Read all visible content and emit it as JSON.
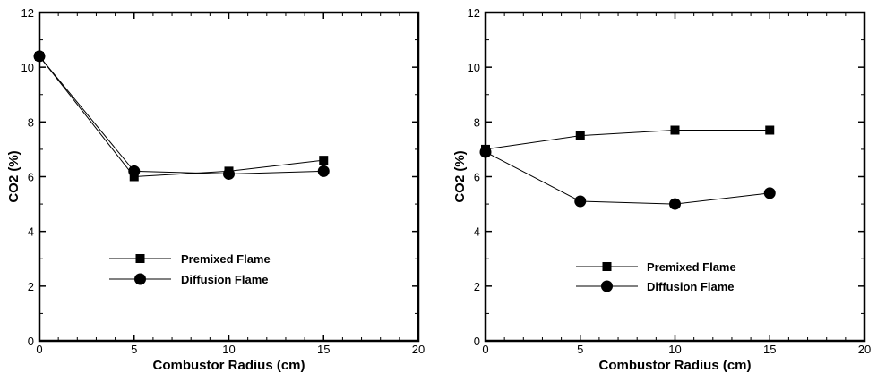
{
  "chart_data": [
    {
      "type": "line",
      "x": [
        0,
        5,
        10,
        15
      ],
      "series": [
        {
          "name": "Premixed Flame",
          "marker": "square",
          "values": [
            10.4,
            6.0,
            6.2,
            6.6
          ]
        },
        {
          "name": "Diffusion Flame",
          "marker": "circle",
          "values": [
            10.4,
            6.2,
            6.1,
            6.2
          ]
        }
      ],
      "xlabel": "Combustor Radius (cm)",
      "ylabel": "CO2 (%)",
      "xlim": [
        0,
        20
      ],
      "ylim": [
        0,
        12
      ],
      "xticks": [
        "0",
        "5",
        "10",
        "15",
        "20"
      ],
      "yticks": [
        "0",
        "2",
        "4",
        "6",
        "8",
        "10",
        "12"
      ],
      "grid": false,
      "legend_position": "lower-middle"
    },
    {
      "type": "line",
      "x": [
        0,
        5,
        10,
        15
      ],
      "series": [
        {
          "name": "Premixed Flame",
          "marker": "square",
          "values": [
            7.0,
            7.5,
            7.7,
            7.7
          ]
        },
        {
          "name": "Diffusion Flame",
          "marker": "circle",
          "values": [
            6.9,
            5.1,
            5.0,
            5.4
          ]
        }
      ],
      "xlabel": "Combustor Radius (cm)",
      "ylabel": "CO2 (%)",
      "xlim": [
        0,
        20
      ],
      "ylim": [
        0,
        12
      ],
      "xticks": [
        "0",
        "5",
        "10",
        "15",
        "20"
      ],
      "yticks": [
        "0",
        "2",
        "4",
        "6",
        "8",
        "10",
        "12"
      ],
      "grid": false,
      "legend_position": "lower-middle"
    }
  ]
}
